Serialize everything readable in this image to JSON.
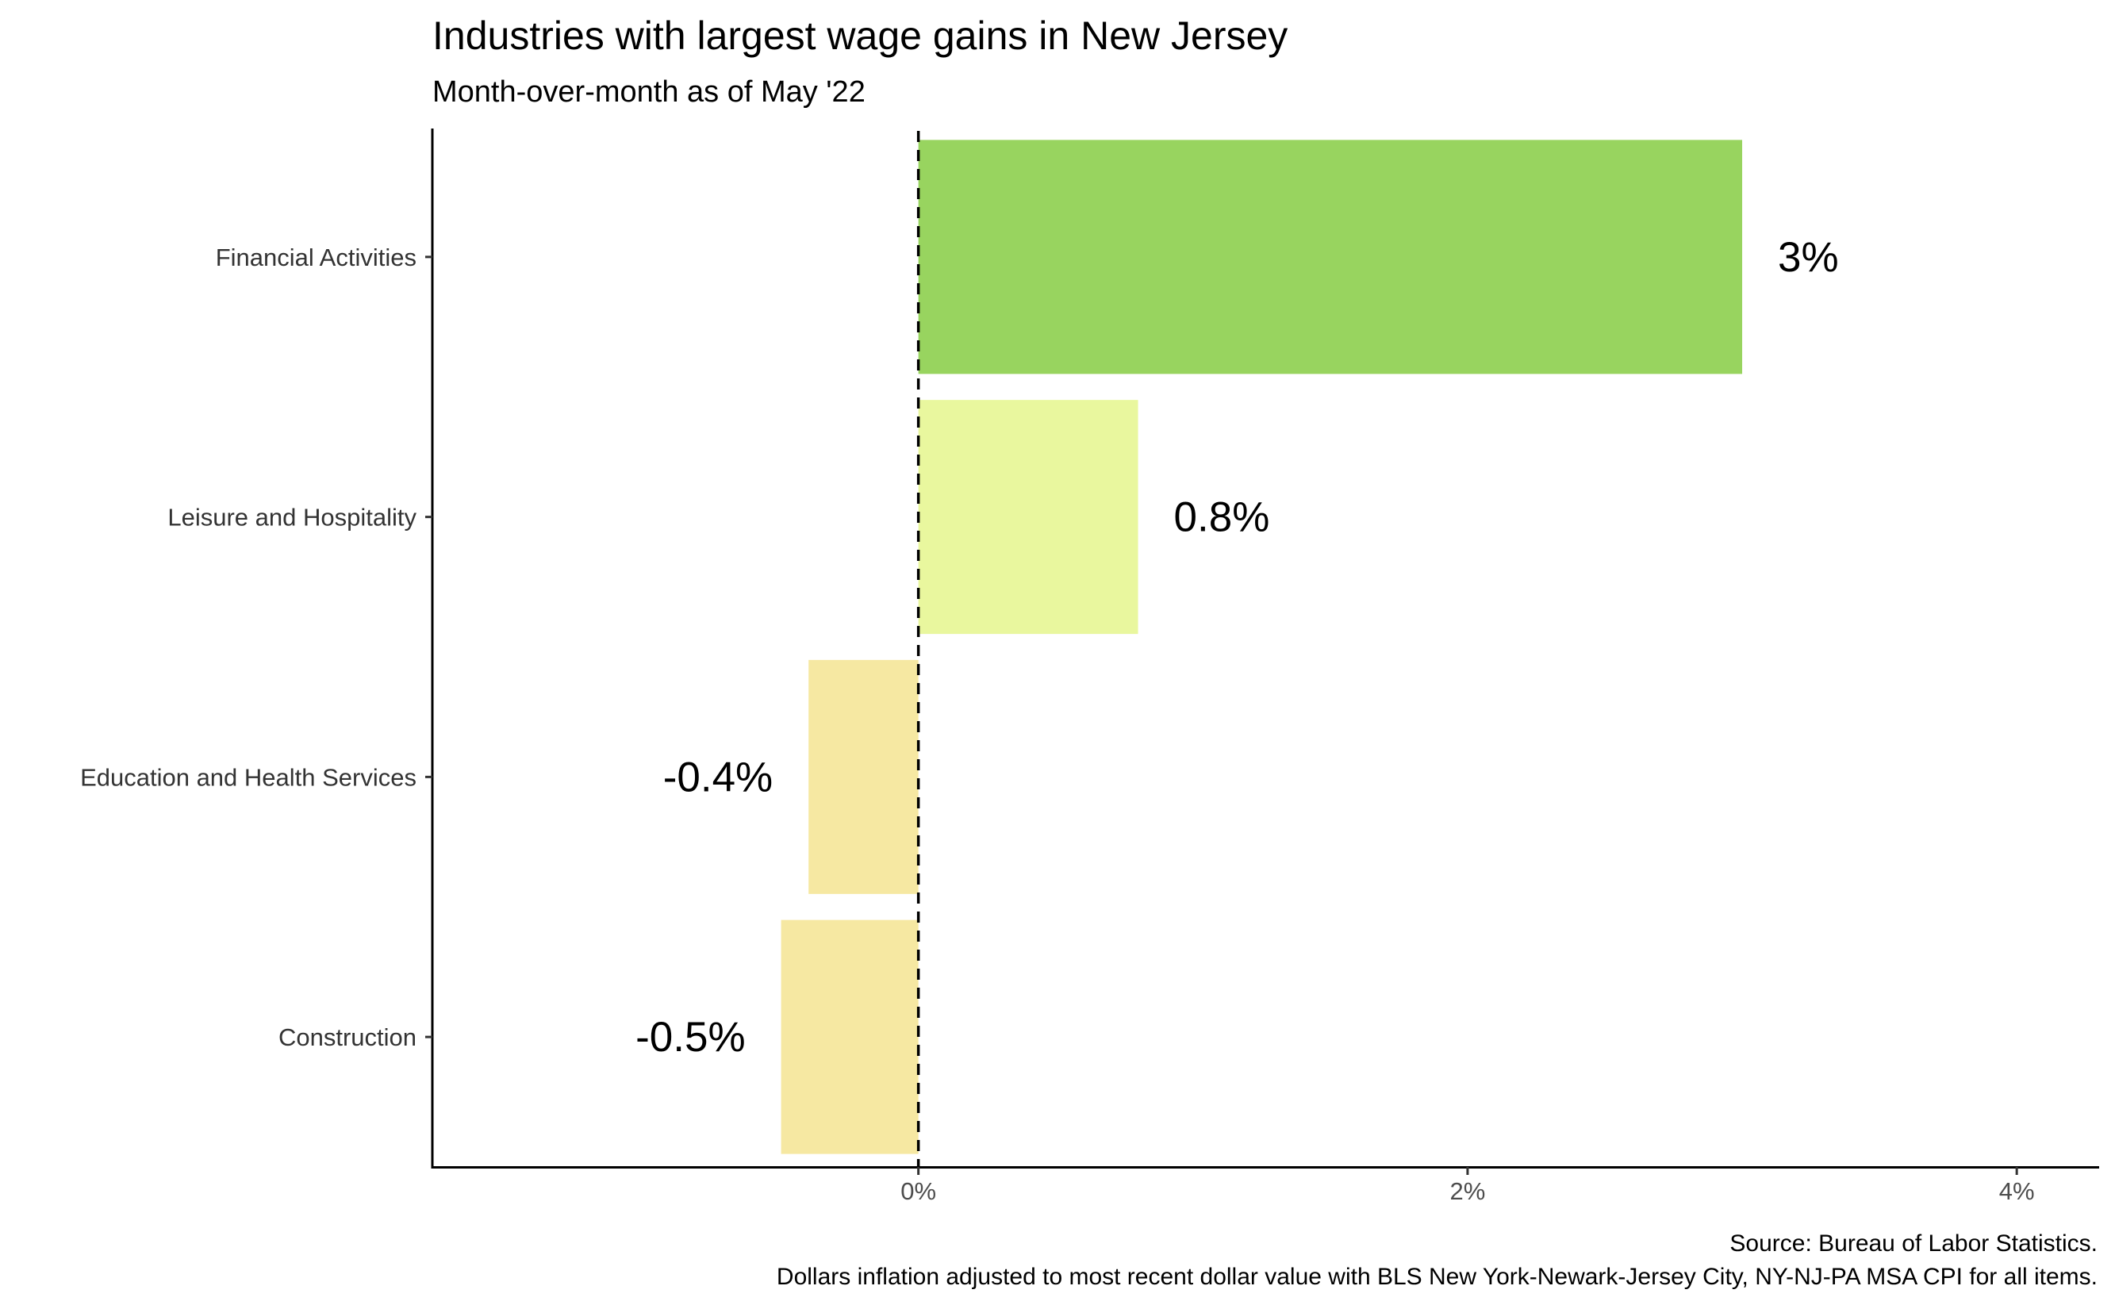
{
  "chart_data": {
    "type": "bar",
    "orientation": "horizontal",
    "title": "Industries with largest wage gains in New Jersey",
    "subtitle": "Month-over-month as of May '22",
    "categories": [
      "Financial Activities",
      "Leisure and Hospitality",
      "Education and Health Services",
      "Construction"
    ],
    "values": [
      3.0,
      0.8,
      -0.4,
      -0.5
    ],
    "value_labels": [
      "3%",
      "0.8%",
      "-0.4%",
      "-0.5%"
    ],
    "bar_colors": [
      "#98d45f",
      "#e9f79e",
      "#f6e8a2",
      "#f6e8a2"
    ],
    "xlim": [
      -1.77,
      4.3
    ],
    "x_ticks": [
      0,
      2,
      4
    ],
    "x_tick_labels": [
      "0%",
      "2%",
      "4%"
    ],
    "xlabel": "",
    "ylabel": "",
    "reference_line": {
      "x": 0,
      "style": "dashed"
    },
    "grid": false,
    "legend": "none",
    "caption_lines": [
      "Source: Bureau of Labor Statistics.",
      "Dollars inflation adjusted to most recent dollar value with BLS New York-Newark-Jersey City, NY-NJ-PA MSA CPI for all items."
    ]
  }
}
